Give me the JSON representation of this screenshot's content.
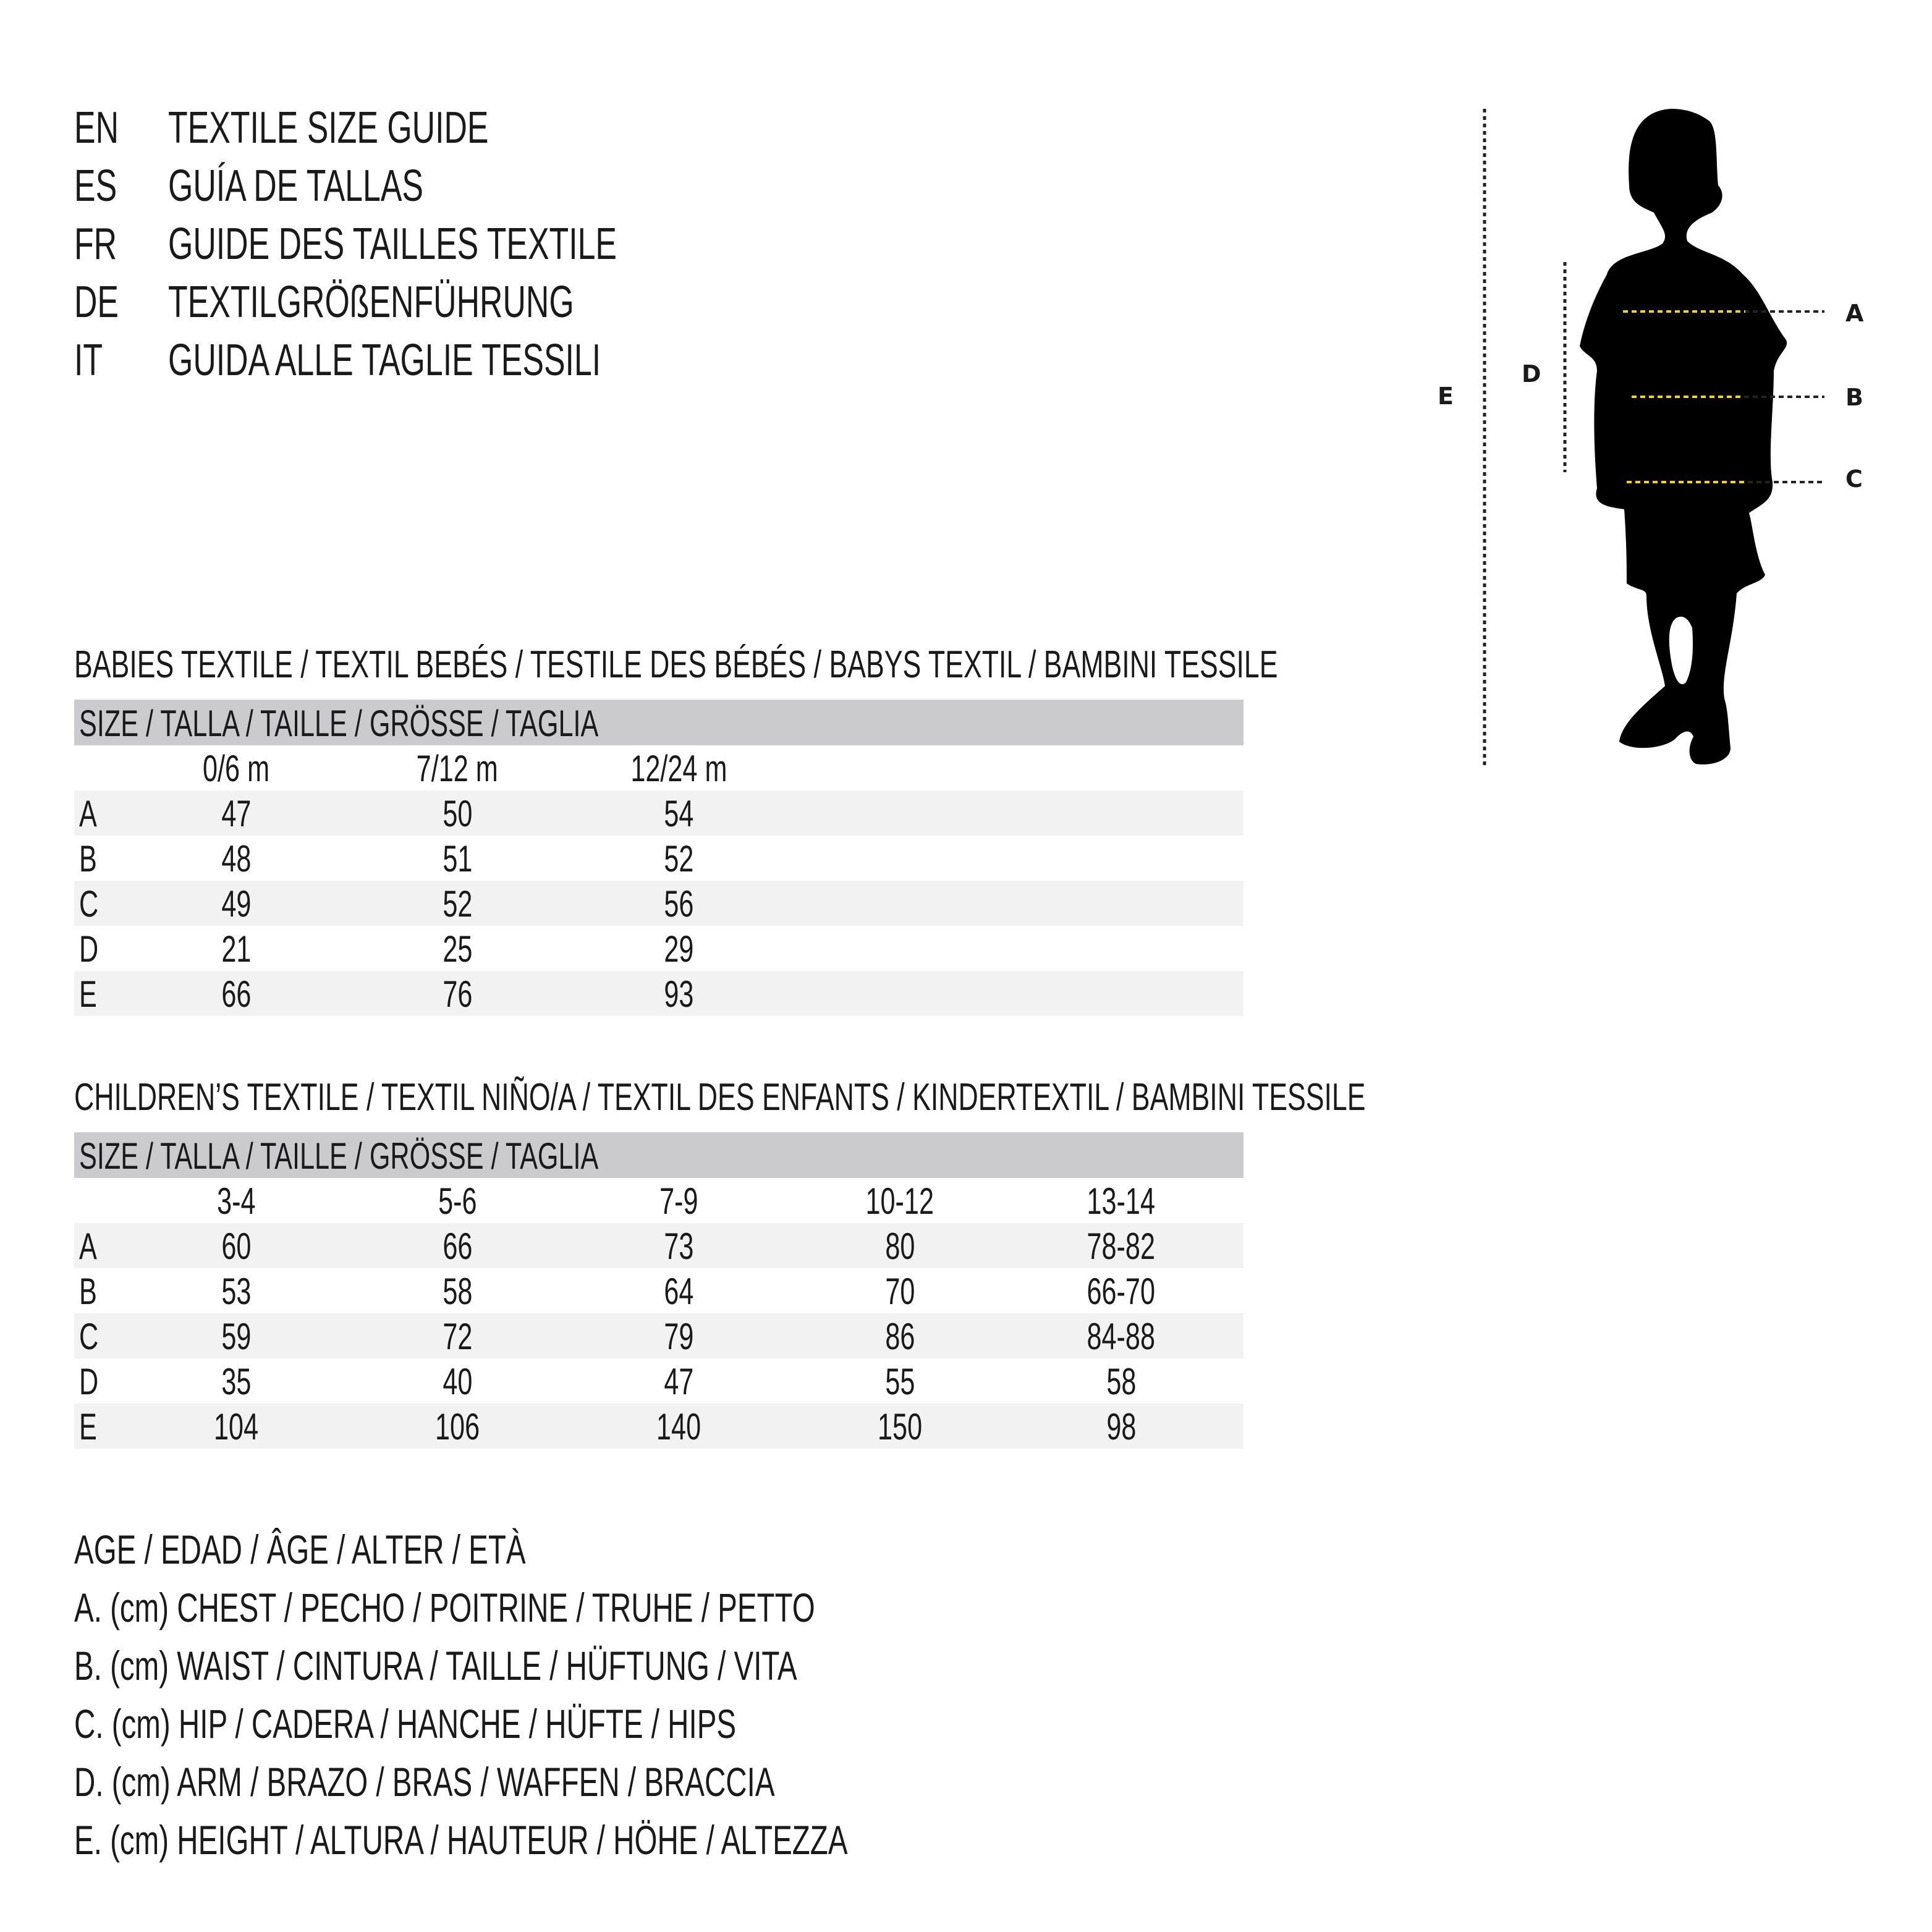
{
  "titles": [
    {
      "code": "EN",
      "text": "TEXTILE SIZE GUIDE"
    },
    {
      "code": "ES",
      "text": "GUÍA DE TALLAS"
    },
    {
      "code": "FR",
      "text": "GUIDE DES TAILLES TEXTILE"
    },
    {
      "code": "DE",
      "text": "TEXTILGRÖßENFÜHRUNG"
    },
    {
      "code": "IT",
      "text": "GUIDA ALLE TAGLIE TESSILI"
    }
  ],
  "babies": {
    "heading": "BABIES TEXTILE / TEXTIL BEBÉS / TESTILE DES BÉBÉS / BABYS TEXTIL / BAMBINI TESSILE",
    "size_bar": "SIZE / TALLA / TAILLE / GRÖSSE / TAGLIA",
    "columns": [
      "0/6 m",
      "7/12 m",
      "12/24 m"
    ],
    "rows": [
      {
        "label": "A",
        "values": [
          "47",
          "50",
          "54"
        ]
      },
      {
        "label": "B",
        "values": [
          "48",
          "51",
          "52"
        ]
      },
      {
        "label": "C",
        "values": [
          "49",
          "52",
          "56"
        ]
      },
      {
        "label": "D",
        "values": [
          "21",
          "25",
          "29"
        ]
      },
      {
        "label": "E",
        "values": [
          "66",
          "76",
          "93"
        ]
      }
    ]
  },
  "children": {
    "heading": "CHILDREN’S TEXTILE / TEXTIL NIÑO/A / TEXTIL DES ENFANTS / KINDERTEXTIL / BAMBINI TESSILE",
    "size_bar": "SIZE / TALLA / TAILLE / GRÖSSE / TAGLIA",
    "columns": [
      "3-4",
      "5-6",
      "7-9",
      "10-12",
      "13-14"
    ],
    "rows": [
      {
        "label": "A",
        "values": [
          "60",
          "66",
          "73",
          "80",
          "78-82"
        ]
      },
      {
        "label": "B",
        "values": [
          "53",
          "58",
          "64",
          "70",
          "66-70"
        ]
      },
      {
        "label": "C",
        "values": [
          "59",
          "72",
          "79",
          "86",
          "84-88"
        ]
      },
      {
        "label": "D",
        "values": [
          "35",
          "40",
          "47",
          "55",
          "58"
        ]
      },
      {
        "label": "E",
        "values": [
          "104",
          "106",
          "140",
          "150",
          "98"
        ]
      }
    ]
  },
  "legend": [
    "AGE / EDAD / ÂGE / ALTER / ETÀ",
    "A. (cm) CHEST / PECHO / POITRINE / TRUHE / PETTO",
    "B. (cm) WAIST / CINTURA / TAILLE / HÜFTUNG / VITA",
    "C. (cm) HIP / CADERA / HANCHE / HÜFTE / HIPS",
    "D. (cm) ARM / BRAZO / BRAS / WAFFEN / BRACCIA",
    "E. (cm) HEIGHT / ALTURA / HAUTEUR / HÖHE / ALTEZZA"
  ],
  "figure": {
    "icon": "child-silhouette-icon",
    "labels": {
      "A": "A",
      "B": "B",
      "C": "C",
      "D": "D",
      "E": "E"
    },
    "colors": {
      "silhouette": "#000000",
      "measure_inside": "#f2d41c",
      "measure_outside": "#222222"
    }
  }
}
